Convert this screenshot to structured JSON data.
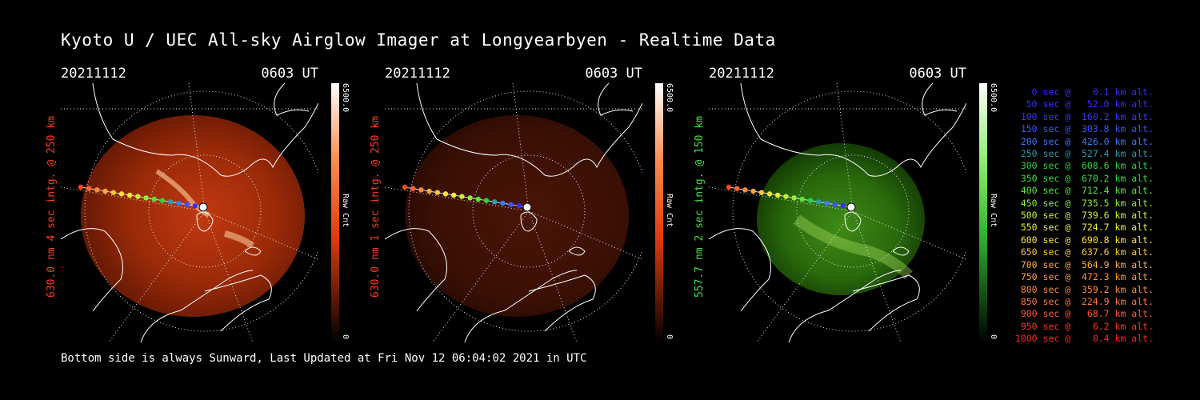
{
  "title": "Kyoto U / UEC All-sky Airglow Imager at Longyearbyen - Realtime Data",
  "footer": "Bottom side is always Sunward, Last Updated at Fri Nov 12 06:04:02 2021 in UTC",
  "panels": [
    {
      "date": "20211112",
      "time": "0603 UT",
      "ylabel": "630.0 nm 4 sec intg. @ 250 km",
      "cbar_max": "6500.0",
      "cbar_min": "0",
      "cbar_label": "Raw Cnt",
      "color": "#ff3b1a"
    },
    {
      "date": "20211112",
      "time": "0603 UT",
      "ylabel": "630.0 nm 1 sec intg. @ 250 km",
      "cbar_max": "6500.0",
      "cbar_min": "0",
      "cbar_label": "Raw Cnt",
      "color": "#ff3b1a"
    },
    {
      "date": "20211112",
      "time": "0603 UT",
      "ylabel": "557.7 nm 2 sec intg. @ 150 km",
      "cbar_max": "6500.0",
      "cbar_min": "0",
      "cbar_label": "Raw Cnt",
      "color": "#3fe23f"
    }
  ],
  "legend": [
    {
      "text": "   0 sec @    0.1 km alt.",
      "color": "#3a2bff"
    },
    {
      "text": "  50 sec @   52.0 km alt.",
      "color": "#3a2bff"
    },
    {
      "text": " 100 sec @  160.2 km alt.",
      "color": "#3a3aff"
    },
    {
      "text": " 150 sec @  303.8 km alt.",
      "color": "#3a55ff"
    },
    {
      "text": " 200 sec @  426.0 km alt.",
      "color": "#3a7aff"
    },
    {
      "text": " 250 sec @  527.4 km alt.",
      "color": "#2a9bb0"
    },
    {
      "text": " 300 sec @  608.6 km alt.",
      "color": "#2ed24a"
    },
    {
      "text": " 350 sec @  670.2 km alt.",
      "color": "#3ee03e"
    },
    {
      "text": " 400 sec @  712.4 km alt.",
      "color": "#58e83a"
    },
    {
      "text": " 450 sec @  735.5 km alt.",
      "color": "#8ff03a"
    },
    {
      "text": " 500 sec @  739.6 km alt.",
      "color": "#c8f23a"
    },
    {
      "text": " 550 sec @  724.7 km alt.",
      "color": "#f0f03a"
    },
    {
      "text": " 600 sec @  690.8 km alt.",
      "color": "#ffe23a"
    },
    {
      "text": " 650 sec @  637.6 km alt.",
      "color": "#ffc83a"
    },
    {
      "text": " 700 sec @  564.9 km alt.",
      "color": "#ffb03a"
    },
    {
      "text": " 750 sec @  472.3 km alt.",
      "color": "#ff9a3a"
    },
    {
      "text": " 800 sec @  359.2 km alt.",
      "color": "#ff8a3a"
    },
    {
      "text": " 850 sec @  224.9 km alt.",
      "color": "#ff7a3a"
    },
    {
      "text": " 900 sec @   68.7 km alt.",
      "color": "#ff5a2a"
    },
    {
      "text": " 950 sec @    6.2 km alt.",
      "color": "#ff3a20"
    },
    {
      "text": "1000 sec @    0.4 km alt.",
      "color": "#ff2a1a"
    }
  ],
  "track_colors": [
    "#ff4a1a",
    "#ff6a2a",
    "#ff8a3a",
    "#ffa83a",
    "#ffc83a",
    "#ffe23a",
    "#f0f03a",
    "#c8f23a",
    "#8ff03a",
    "#58e83a",
    "#2ed24a",
    "#2a9bb0",
    "#3a7aff",
    "#3a55ff",
    "#3a2bff",
    "#ffffff"
  ]
}
